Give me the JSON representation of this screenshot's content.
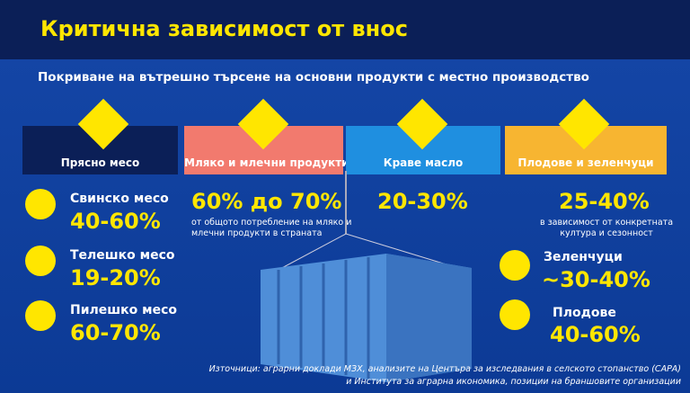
{
  "header": {
    "title": "Критична зависимост от внос"
  },
  "subtitle": "Покриване на вътрешно търсене на основни продукти с местно производство",
  "columns": [
    {
      "title": "Прясно месо",
      "items": [
        {
          "label": "Свинско месо",
          "value": "40-60%"
        },
        {
          "label": "Телешко месо",
          "value": "19-20%"
        },
        {
          "label": "Пилешко месо",
          "value": "60-70%"
        }
      ]
    },
    {
      "title": "Мляко и млечни продукти",
      "value": "60% до 70%",
      "note": "от общото потребление на мляко и млечни продукти в страната"
    },
    {
      "title": "Краве масло",
      "value": "20-30%"
    },
    {
      "title": "Плодове и зеленчуци",
      "value": "25-40%",
      "note": "в зависимост от конкретната култура и сезонност",
      "items": [
        {
          "label": "Зеленчуци",
          "value": "~30-40%"
        },
        {
          "label": "Плодове",
          "value": "40-60%"
        }
      ]
    }
  ],
  "source": [
    "Източници: аграрни доклади МЗХ, анализите на Центъра за изследвания в селското стопанство (САРА)",
    "и Института за аграрна икономика, позиции на браншовите организации"
  ]
}
